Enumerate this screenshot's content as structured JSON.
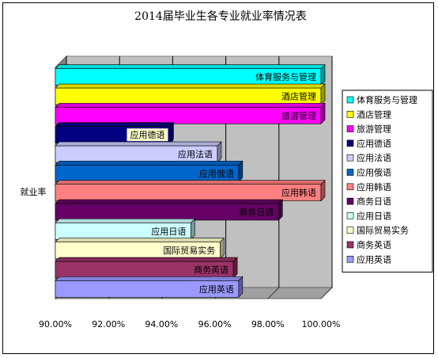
{
  "chart_data": {
    "type": "bar",
    "orientation": "horizontal",
    "title": "2014届毕业生各专业就业率情况表",
    "ylabel": "就业率",
    "xlim": [
      0.9,
      1.0
    ],
    "x_ticks": [
      "90.00%",
      "92.00%",
      "94.00%",
      "96.00%",
      "98.00%",
      "100.00%"
    ],
    "grid": true,
    "legend_position": "right",
    "series": [
      {
        "name": "体育服务与管理",
        "value": 1.0,
        "color": "#00ffff"
      },
      {
        "name": "酒店管理",
        "value": 1.0,
        "color": "#ffff00"
      },
      {
        "name": "旅游管理",
        "value": 1.0,
        "color": "#ff00ff"
      },
      {
        "name": "应用德语",
        "value": 0.943,
        "color": "#000080"
      },
      {
        "name": "应用法语",
        "value": 0.961,
        "color": "#ccccff"
      },
      {
        "name": "应用俄语",
        "value": 0.969,
        "color": "#0066cc"
      },
      {
        "name": "应用韩语",
        "value": 1.0,
        "color": "#ff8080"
      },
      {
        "name": "商务日语",
        "value": 0.984,
        "color": "#660066"
      },
      {
        "name": "应用日语",
        "value": 0.951,
        "color": "#ccffff"
      },
      {
        "name": "国际贸易实务",
        "value": 0.962,
        "color": "#ffffcc"
      },
      {
        "name": "商务英语",
        "value": 0.967,
        "color": "#993366"
      },
      {
        "name": "应用英语",
        "value": 0.969,
        "color": "#9999ff"
      }
    ]
  }
}
